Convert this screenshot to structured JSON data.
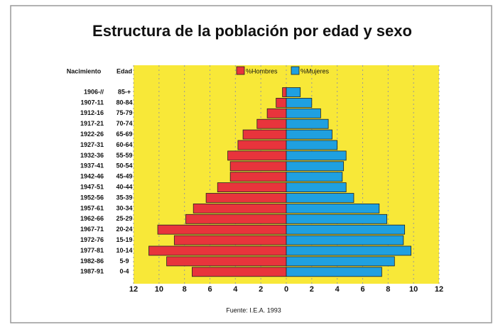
{
  "chart_data": {
    "type": "pyramid",
    "title": "Estructura de la población por edad y sexo",
    "birth_label": "Nacimiento",
    "category_label": "Edad",
    "categories": [
      "85-+",
      "80-84",
      "75-79",
      "70-74",
      "65-69",
      "60-64",
      "55-59",
      "50-54",
      "45-49",
      "40-44",
      "35-39",
      "30-34",
      "25-29",
      "20-24",
      "15-19",
      "10-14",
      "5-9",
      "0-4"
    ],
    "birth_years": [
      "1906-//",
      "1907-11",
      "1912-16",
      "1917-21",
      "1922-26",
      "1927-31",
      "1932-36",
      "1937-41",
      "1942-46",
      "1947-51",
      "1952-56",
      "1957-61",
      "1962-66",
      "1967-71",
      "1972-76",
      "1977-81",
      "1982-86",
      "1987-91"
    ],
    "series": [
      {
        "name": "%Hombres",
        "color": "#e8343c",
        "side": "left",
        "values": [
          0.3,
          0.8,
          1.5,
          2.3,
          3.4,
          3.8,
          4.6,
          4.4,
          4.4,
          5.4,
          6.3,
          7.3,
          7.9,
          10.1,
          8.8,
          10.8,
          9.4,
          7.4
        ]
      },
      {
        "name": "%Mujeres",
        "color": "#1fa0e0",
        "side": "right",
        "values": [
          1.1,
          2.0,
          2.7,
          3.3,
          3.6,
          4.0,
          4.7,
          4.5,
          4.4,
          4.7,
          5.3,
          7.3,
          7.9,
          9.3,
          9.2,
          9.8,
          8.5,
          7.5
        ]
      }
    ],
    "xlim": [
      -12,
      12
    ],
    "xticks": [
      {
        "value": -12,
        "label": "12"
      },
      {
        "value": -10,
        "label": "10"
      },
      {
        "value": -8,
        "label": "8"
      },
      {
        "value": -6,
        "label": "6"
      },
      {
        "value": -4,
        "label": "4"
      },
      {
        "value": -2,
        "label": "2"
      },
      0,
      2,
      4,
      6,
      8,
      10,
      12
    ],
    "grid": true,
    "plot_color": "#f8e838",
    "source": "Fuente: I.E.A. 1993"
  }
}
